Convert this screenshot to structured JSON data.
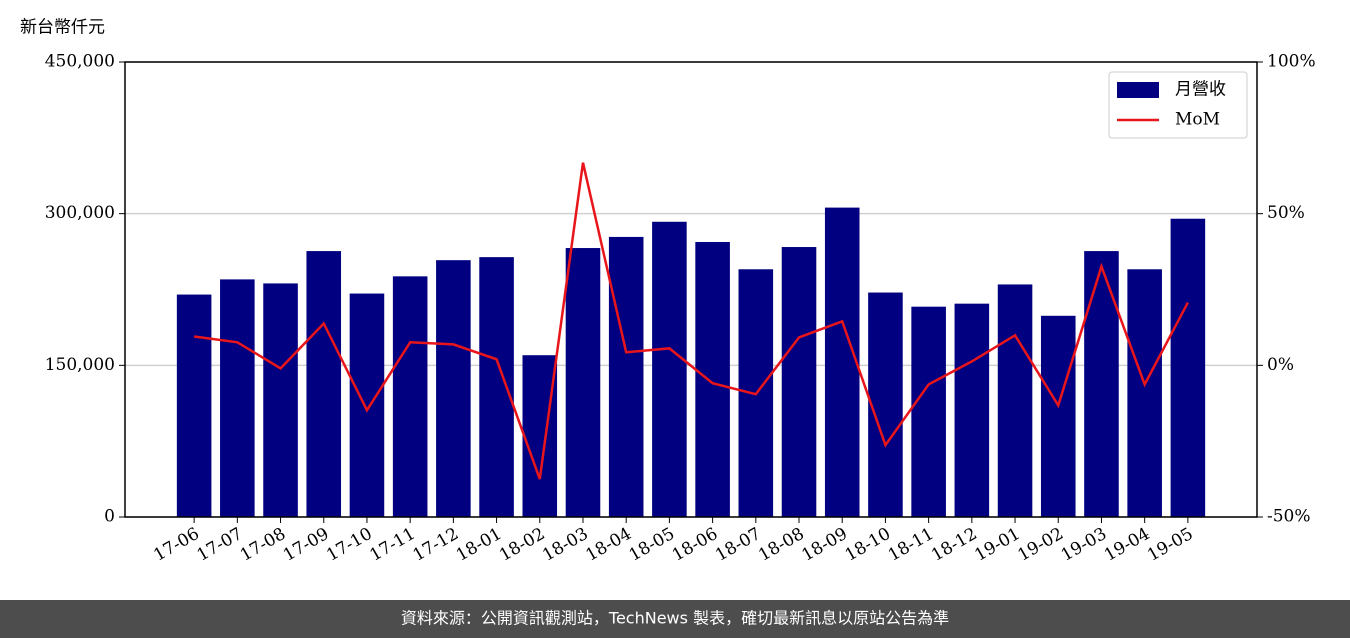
{
  "chart_data": {
    "type": "bar",
    "y_label": "新台幣仟元",
    "categories": [
      "17-06",
      "17-07",
      "17-08",
      "17-09",
      "17-10",
      "17-11",
      "17-12",
      "18-01",
      "18-02",
      "18-03",
      "18-04",
      "18-05",
      "18-06",
      "18-07",
      "18-08",
      "18-09",
      "18-10",
      "18-11",
      "18-12",
      "19-01",
      "19-02",
      "19-03",
      "19-04",
      "19-05"
    ],
    "series": [
      {
        "name": "月營收",
        "type": "bar",
        "color": "#000080",
        "values": [
          220000,
          235000,
          231000,
          263000,
          221000,
          238000,
          254000,
          257000,
          160000,
          266000,
          277000,
          292000,
          272000,
          245000,
          267000,
          306000,
          222000,
          208000,
          211000,
          230000,
          199000,
          263000,
          245000,
          295000
        ]
      },
      {
        "name": "MoM",
        "type": "line",
        "axis": "y2",
        "color": "#e8161b",
        "values": [
          9.5,
          7.6,
          -1,
          13.8,
          -14.8,
          7.6,
          6.9,
          2,
          -37.5,
          66.8,
          4.3,
          5.6,
          -5.9,
          -9.5,
          9.2,
          14.5,
          -26.3,
          -6.3,
          1.3,
          9.9,
          -13.2,
          32.6,
          -6.3,
          20.7
        ]
      }
    ],
    "ylim": [
      0,
      450000
    ],
    "yticks": [
      0,
      {
        "value": 150000,
        "label": "150,000"
      },
      {
        "value": 300000,
        "label": "300,000"
      },
      {
        "value": 450000,
        "label": "450,000"
      }
    ],
    "y2lim": [
      -50,
      100
    ],
    "y2ticks": [
      {
        "value": -50,
        "label": "-50%"
      },
      {
        "value": 0,
        "label": "0%"
      },
      {
        "value": 50,
        "label": "50%"
      },
      {
        "value": 100,
        "label": "100%"
      }
    ],
    "grid": true,
    "legend": "upper right"
  },
  "footer": "資料來源：公開資訊觀測站，TechNews 製表，確切最新訊息以原站公告為準"
}
